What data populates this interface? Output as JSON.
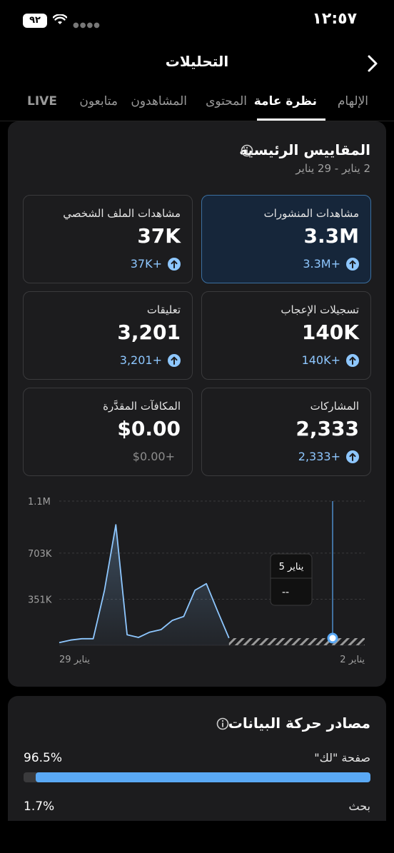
{
  "status": {
    "battery": "٩٢",
    "time": "١٢:٥٧"
  },
  "header": {
    "title": "التحليلات"
  },
  "tabs": [
    "الإلهام",
    "نظرة عامة",
    "المحتوى",
    "المشاهدون",
    "متابعون",
    "LIVE"
  ],
  "metrics_section": {
    "title": "المقاييس الرئيسية",
    "date_range": "2 يناير - 29 يناير",
    "cards": [
      {
        "label": "مشاهدات المنشورات",
        "value": "3.3M",
        "delta": "3.3M+",
        "selected": true
      },
      {
        "label": "مشاهدات الملف الشخصي",
        "value": "37K",
        "delta": "37K+",
        "selected": false
      },
      {
        "label": "تسجيلات الإعجاب",
        "value": "140K",
        "delta": "140K+",
        "selected": false
      },
      {
        "label": "تعليقات",
        "value": "3,201",
        "delta": "3,201+",
        "selected": false
      },
      {
        "label": "المشاركات",
        "value": "2,333",
        "delta": "2,333+",
        "selected": false
      },
      {
        "label": "المكافآت المقدَّرة",
        "value": "$0.00",
        "delta": "$0.00+",
        "selected": false
      }
    ]
  },
  "chart_data": {
    "type": "area",
    "y_ticks": [
      "1.1M",
      "703K",
      "351K"
    ],
    "x_labels": [
      "29 يناير",
      "2 يناير"
    ],
    "ylim": [
      0,
      1100000
    ],
    "x": [
      29,
      28,
      27,
      26,
      25,
      24,
      23,
      22,
      21,
      20,
      19,
      18,
      17,
      16,
      15,
      14,
      13,
      12,
      11,
      10,
      9,
      8,
      7,
      6,
      5,
      4,
      3,
      2
    ],
    "values": [
      20000,
      40000,
      50000,
      50000,
      420000,
      920000,
      80000,
      60000,
      100000,
      120000,
      190000,
      220000,
      420000,
      470000,
      260000,
      55000,
      null,
      null,
      null,
      null,
      null,
      null,
      null,
      null,
      null,
      null,
      null,
      null
    ],
    "tooltip": {
      "date": "يناير 5",
      "value": "--"
    },
    "colors": {
      "line": "#8ec7ff",
      "grid": "#3a3a3c",
      "hatch": "#9a9a9a"
    }
  },
  "traffic_section": {
    "title": "مصادر حركة البيانات",
    "rows": [
      {
        "label": "صفحة \"لك\"",
        "percent": "96.5%",
        "fraction": 0.965
      },
      {
        "label": "بحث",
        "percent": "1.7%",
        "fraction": 0.017
      }
    ]
  },
  "colors": {
    "accent": "#5aa9f5",
    "delta": "#8ec7ff"
  }
}
